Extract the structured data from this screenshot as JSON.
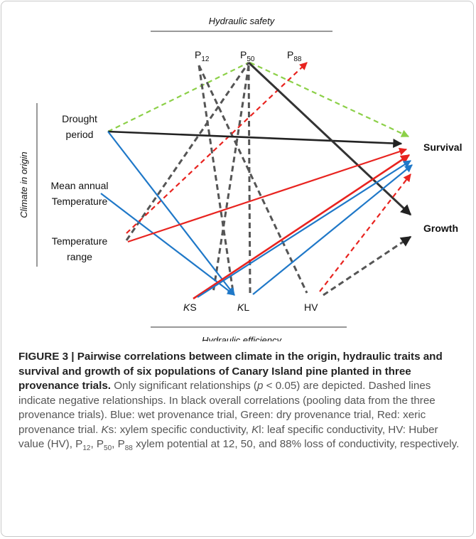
{
  "diagram": {
    "groups": {
      "top": "Hydraulic safety",
      "left": "Climate in origin",
      "bottom": "Hydraulic efficiency"
    },
    "nodes": {
      "p12": {
        "main": "P",
        "sub": "12"
      },
      "p50": {
        "main": "P",
        "sub": "50"
      },
      "p88": {
        "main": "P",
        "sub": "88"
      },
      "drought": [
        "Drought",
        "period"
      ],
      "mean_temp": [
        "Mean annual",
        "Temperature"
      ],
      "temp_range": [
        "Temperature",
        "range"
      ],
      "ks": {
        "italic": "K",
        "rest": "S"
      },
      "kl": {
        "italic": "K",
        "rest": "L"
      },
      "hv": "HV",
      "survival": "Survival",
      "growth": "Growth"
    }
  },
  "caption": {
    "label": "FIGURE 3 |",
    "title": "Pairwise correlations between climate in the origin, hydraulic traits and survival and growth of six populations of Canary Island pine planted in three provenance trials.",
    "runs": [
      " Only significant relationships (",
      "p",
      " < 0.05) are depicted. Dashed lines indicate negative relationships. In black overall correlations (pooling data from the three provenance trials). Blue: wet provenance trial, Green: dry provenance trial, Red: xeric provenance trial. ",
      "K",
      "s: xylem specific conductivity, ",
      "K",
      "l: leaf specific conductivity, HV: Huber value (HV), P",
      "12",
      ", P",
      "50",
      ", P",
      "88",
      " xylem potential at 12, 50, and 88% loss of conductivity, respectively."
    ]
  }
}
